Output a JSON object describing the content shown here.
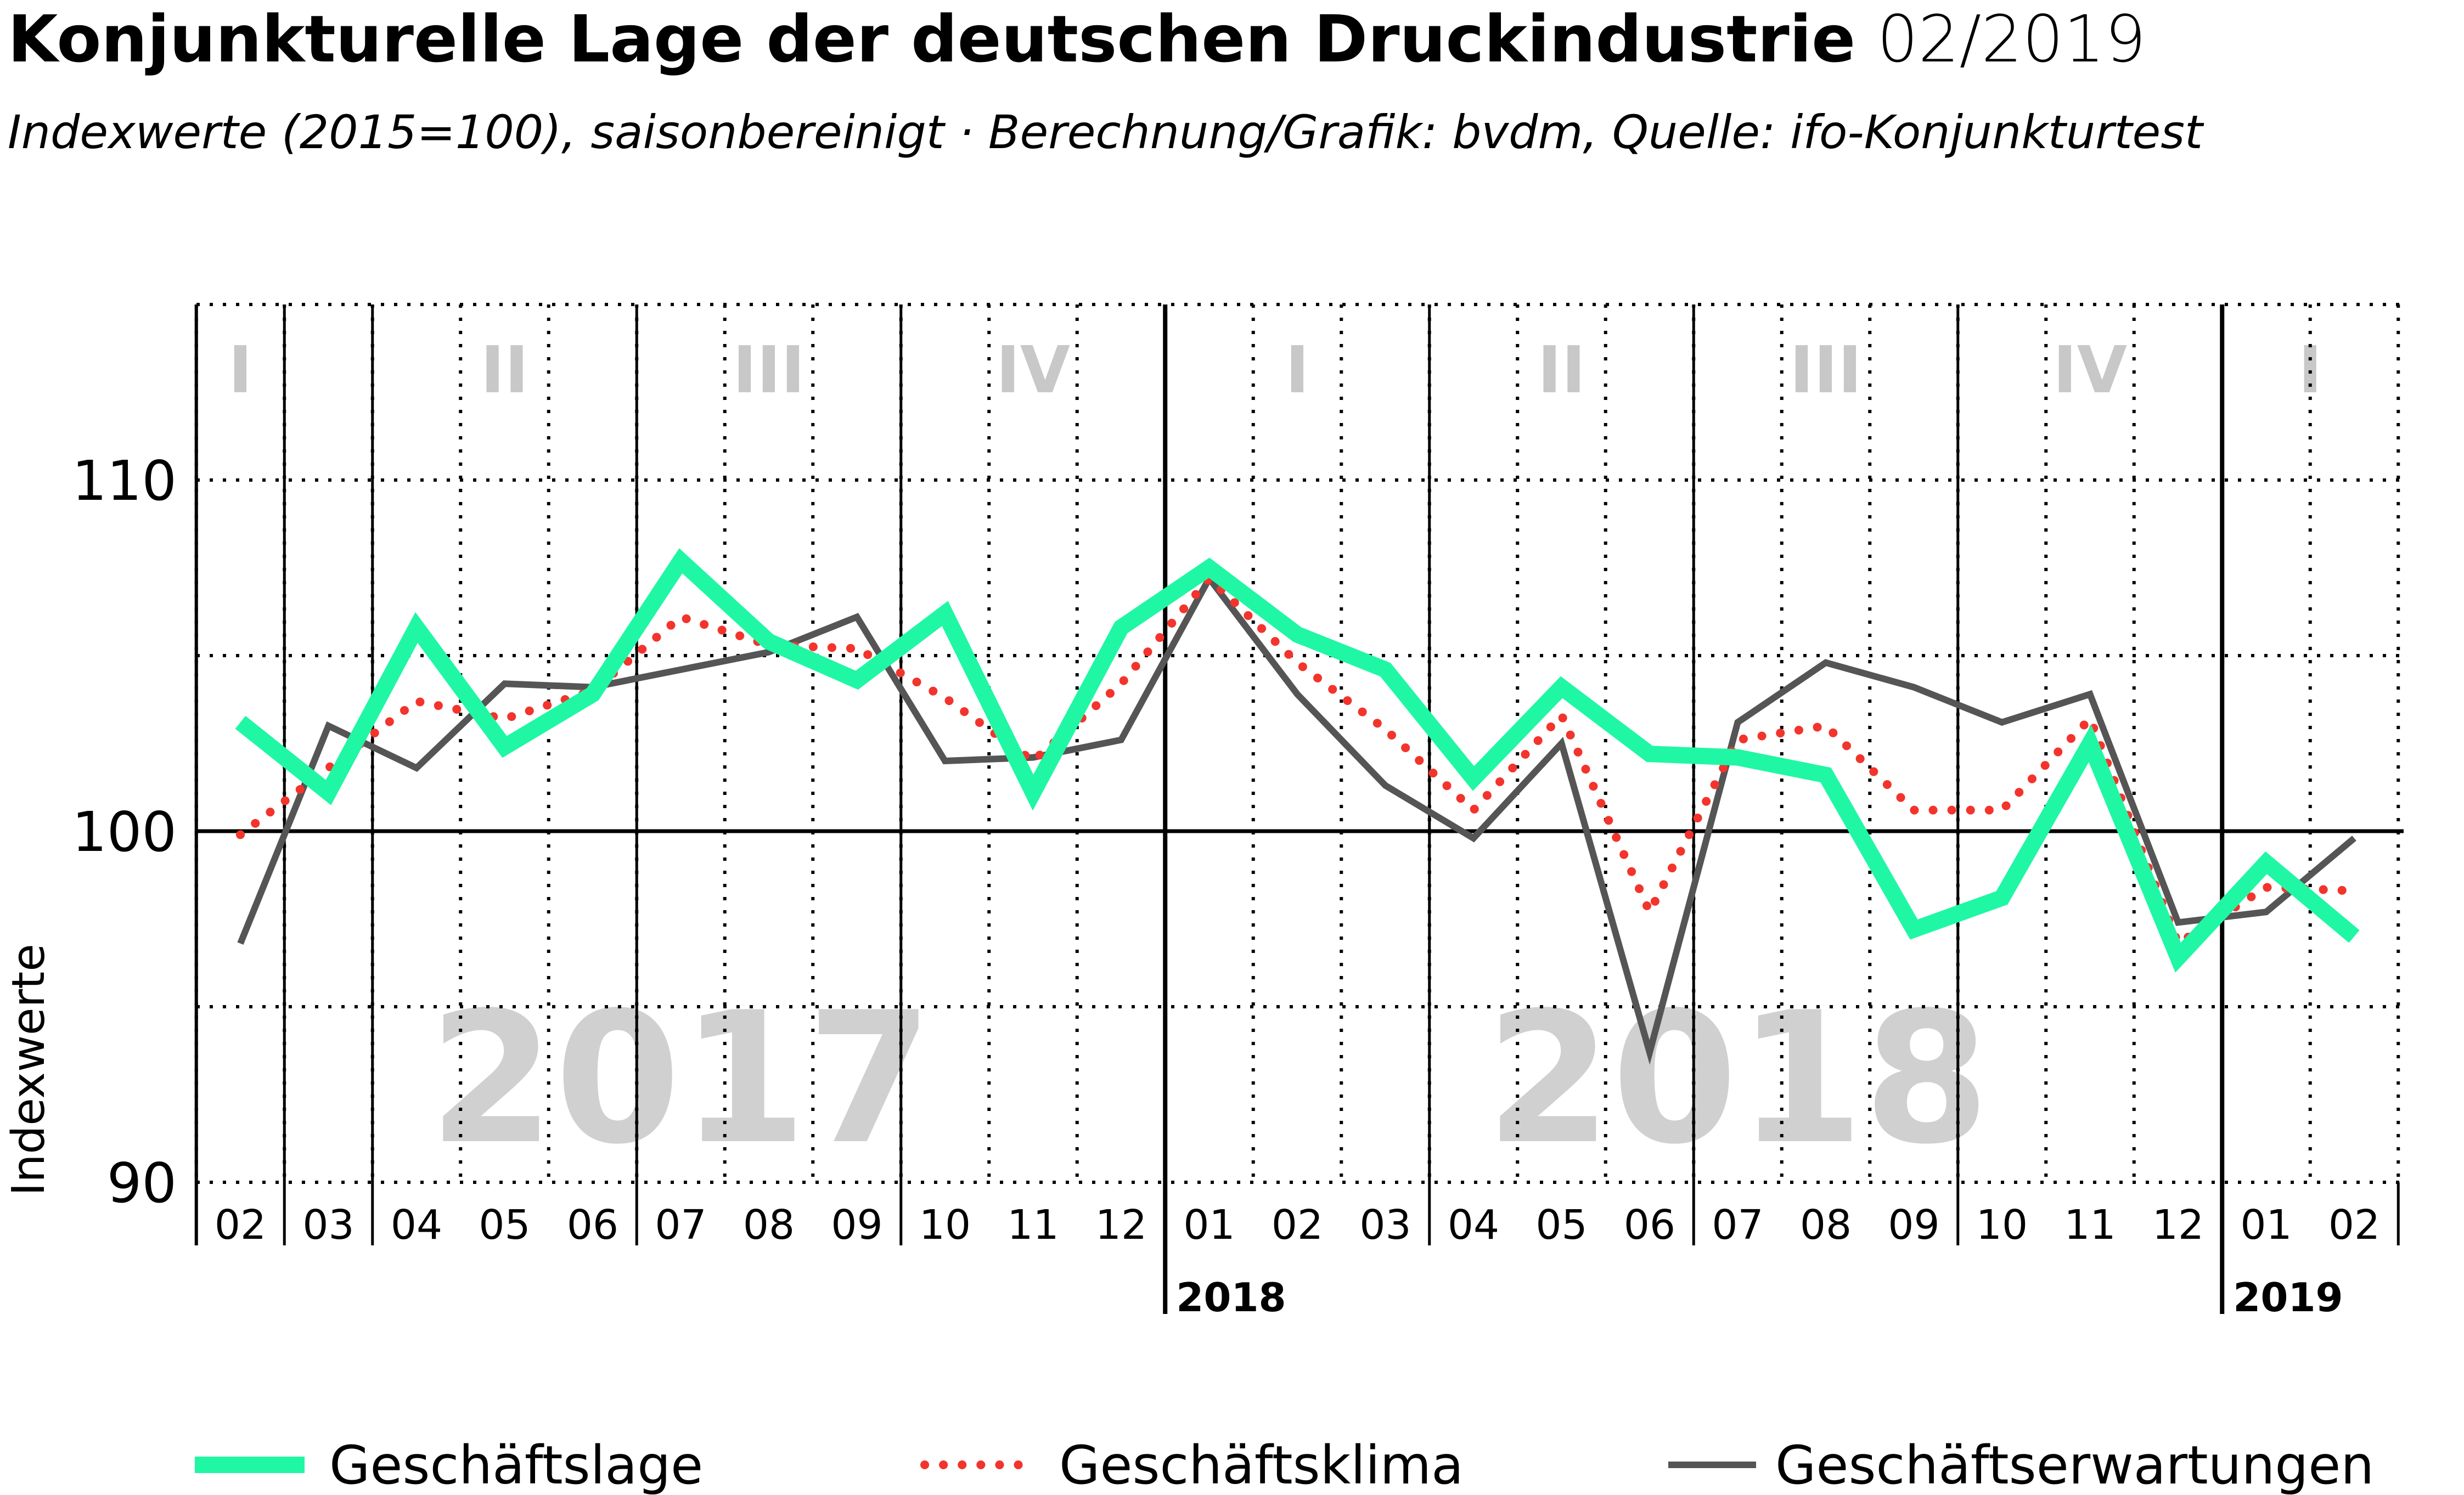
{
  "header": {
    "title": "Konjunkturelle Lage der deutschen Druckindustrie",
    "date": "02/2019",
    "subtitle": "Indexwerte (2015=100), saisonbereinigt · Berechnung/Grafik: bvdm, Quelle: ifo-Konjunkturtest"
  },
  "colors": {
    "geschaeftslage": "#1ff7a4",
    "geschaeftsklima": "#f2342c",
    "geschaeftserwartungen": "#555555",
    "quarter_text": "#c8c8c8",
    "year_watermark": "#d0d0d0"
  },
  "chart_data": {
    "type": "line",
    "title": "Konjunkturelle Lage der deutschen Druckindustrie",
    "ylabel": "Indexwerte",
    "ylim": [
      90,
      115
    ],
    "yticks": [
      90,
      100,
      110
    ],
    "grid": true,
    "legend_position": "bottom",
    "x": [
      "02",
      "03",
      "04",
      "05",
      "06",
      "07",
      "08",
      "09",
      "10",
      "11",
      "12",
      "01",
      "02",
      "03",
      "04",
      "05",
      "06",
      "07",
      "08",
      "09",
      "10",
      "11",
      "12",
      "01",
      "02"
    ],
    "year_labels": [
      {
        "label": "2018",
        "before_index": 11
      },
      {
        "label": "2019",
        "before_index": 23
      }
    ],
    "quarters": [
      {
        "label": "I",
        "start": -0.5,
        "end": 0.5
      },
      {
        "label": "II",
        "start": 1.5,
        "end": 4.5
      },
      {
        "label": "III",
        "start": 4.5,
        "end": 7.5
      },
      {
        "label": "IV",
        "start": 7.5,
        "end": 10.5
      },
      {
        "label": "I",
        "start": 10.5,
        "end": 13.5
      },
      {
        "label": "II",
        "start": 13.5,
        "end": 16.5
      },
      {
        "label": "III",
        "start": 16.5,
        "end": 19.5
      },
      {
        "label": "IV",
        "start": 19.5,
        "end": 22.5
      },
      {
        "label": "I",
        "start": 22.5,
        "end": 24.5
      }
    ],
    "year_watermarks": [
      {
        "label": "2017",
        "center_index": 5
      },
      {
        "label": "2018",
        "center_index": 17
      }
    ],
    "series": [
      {
        "name": "Geschäftslage",
        "style": "solid-thick",
        "values": [
          103.1,
          101.1,
          105.8,
          102.4,
          103.9,
          107.7,
          105.4,
          104.3,
          106.2,
          101.1,
          105.8,
          107.5,
          105.6,
          104.6,
          101.5,
          104.1,
          102.2,
          102.1,
          101.6,
          97.2,
          98.1,
          102.5,
          96.4,
          99.1,
          97.0
        ]
      },
      {
        "name": "Geschäftsklima",
        "style": "dotted",
        "values": [
          99.9,
          101.8,
          103.7,
          103.2,
          104.0,
          106.1,
          105.3,
          105.2,
          103.8,
          102.0,
          104.2,
          107.2,
          104.8,
          102.9,
          100.6,
          103.3,
          97.7,
          102.6,
          103.0,
          100.6,
          100.6,
          103.2,
          96.8,
          98.4,
          98.3
        ]
      },
      {
        "name": "Geschäftserwartungen",
        "style": "solid-thin",
        "values": [
          96.8,
          103.0,
          101.8,
          104.2,
          104.1,
          104.6,
          105.1,
          106.1,
          102.0,
          102.1,
          102.6,
          107.2,
          103.9,
          101.3,
          99.8,
          102.5,
          93.7,
          103.1,
          104.8,
          104.1,
          103.1,
          103.9,
          97.4,
          97.7,
          99.8
        ]
      }
    ]
  }
}
